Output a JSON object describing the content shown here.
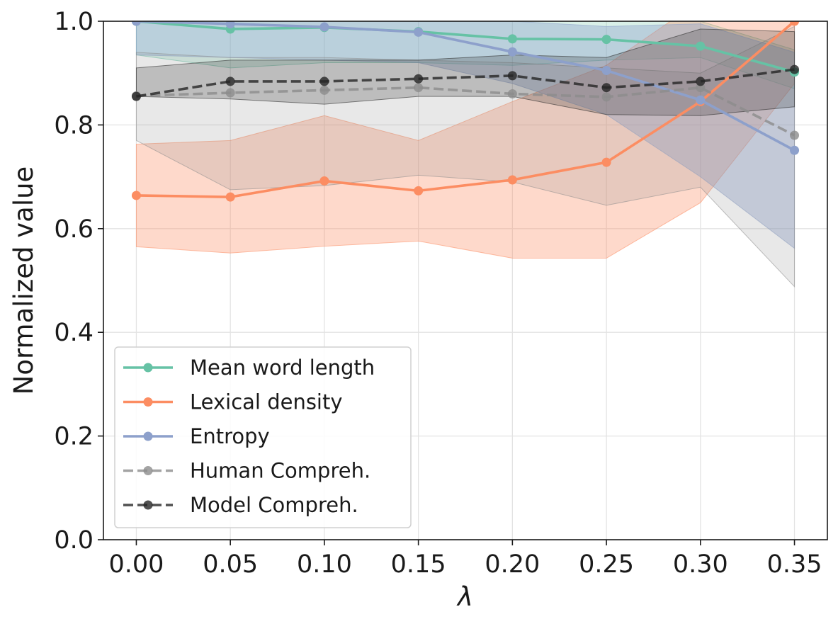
{
  "chart_data": {
    "type": "line",
    "title": "",
    "xlabel": "λ",
    "ylabel": "Normalized value",
    "xlim": [
      -0.0175,
      0.3675
    ],
    "ylim": [
      0.0,
      1.0
    ],
    "grid": true,
    "legend_position": "lower-left",
    "x": [
      0.0,
      0.05,
      0.1,
      0.15,
      0.2,
      0.25,
      0.3,
      0.35
    ],
    "x_tick_labels": [
      "0.00",
      "0.05",
      "0.10",
      "0.15",
      "0.20",
      "0.25",
      "0.30",
      "0.35"
    ],
    "x_ticks": [
      0.0,
      0.05,
      0.1,
      0.15,
      0.2,
      0.25,
      0.3,
      0.35
    ],
    "y_tick_labels": [
      "0.0",
      "0.2",
      "0.4",
      "0.6",
      "0.8",
      "1.0"
    ],
    "y_ticks": [
      0.0,
      0.2,
      0.4,
      0.6,
      0.8,
      1.0
    ],
    "series": [
      {
        "name": "Mean word length",
        "color": "#66c2a5",
        "dashed": false,
        "fill_opacity": 0.25,
        "values": [
          1.0,
          0.985,
          0.988,
          0.98,
          0.966,
          0.965,
          0.952,
          0.902
        ],
        "lower": [
          0.935,
          0.91,
          0.92,
          0.92,
          0.915,
          0.925,
          0.93,
          0.87
        ],
        "upper": [
          1.07,
          1.06,
          1.06,
          1.05,
          1.02,
          1.0,
          1.0,
          0.945
        ]
      },
      {
        "name": "Lexical density",
        "color": "#fc8d62",
        "dashed": false,
        "fill_opacity": 0.33,
        "values": [
          0.664,
          0.661,
          0.692,
          0.673,
          0.694,
          0.728,
          0.845,
          1.0
        ],
        "lower": [
          0.565,
          0.553,
          0.566,
          0.576,
          0.543,
          0.543,
          0.65,
          0.88
        ],
        "upper": [
          0.763,
          0.77,
          0.818,
          0.77,
          0.845,
          0.915,
          1.04,
          1.1
        ]
      },
      {
        "name": "Entropy",
        "color": "#8da0cb",
        "dashed": false,
        "fill_opacity": 0.4,
        "values": [
          1.0,
          0.995,
          0.989,
          0.979,
          0.941,
          0.905,
          0.848,
          0.751
        ],
        "lower": [
          0.935,
          0.93,
          0.925,
          0.92,
          0.88,
          0.82,
          0.7,
          0.562
        ],
        "upper": [
          1.06,
          1.06,
          1.06,
          1.04,
          1.0,
          0.99,
          0.995,
          0.94
        ]
      },
      {
        "name": "Human Compreh.",
        "color": "#8c8c8c",
        "dashed": true,
        "fill_opacity": 0.2,
        "values": [
          0.856,
          0.862,
          0.867,
          0.872,
          0.86,
          0.854,
          0.872,
          0.78
        ],
        "lower": [
          0.77,
          0.675,
          0.683,
          0.703,
          0.69,
          0.645,
          0.68,
          0.488
        ],
        "upper": [
          0.94,
          0.93,
          0.93,
          0.925,
          0.92,
          0.91,
          0.9,
          0.99
        ]
      },
      {
        "name": "Model Compreh.",
        "color": "#262626",
        "dashed": true,
        "fill_opacity": 0.22,
        "values": [
          0.855,
          0.884,
          0.884,
          0.889,
          0.895,
          0.872,
          0.884,
          0.907
        ],
        "lower": [
          0.855,
          0.85,
          0.84,
          0.855,
          0.855,
          0.82,
          0.818,
          0.835
        ],
        "upper": [
          0.91,
          0.925,
          0.925,
          0.925,
          0.935,
          0.93,
          0.985,
          0.98
        ]
      }
    ]
  }
}
